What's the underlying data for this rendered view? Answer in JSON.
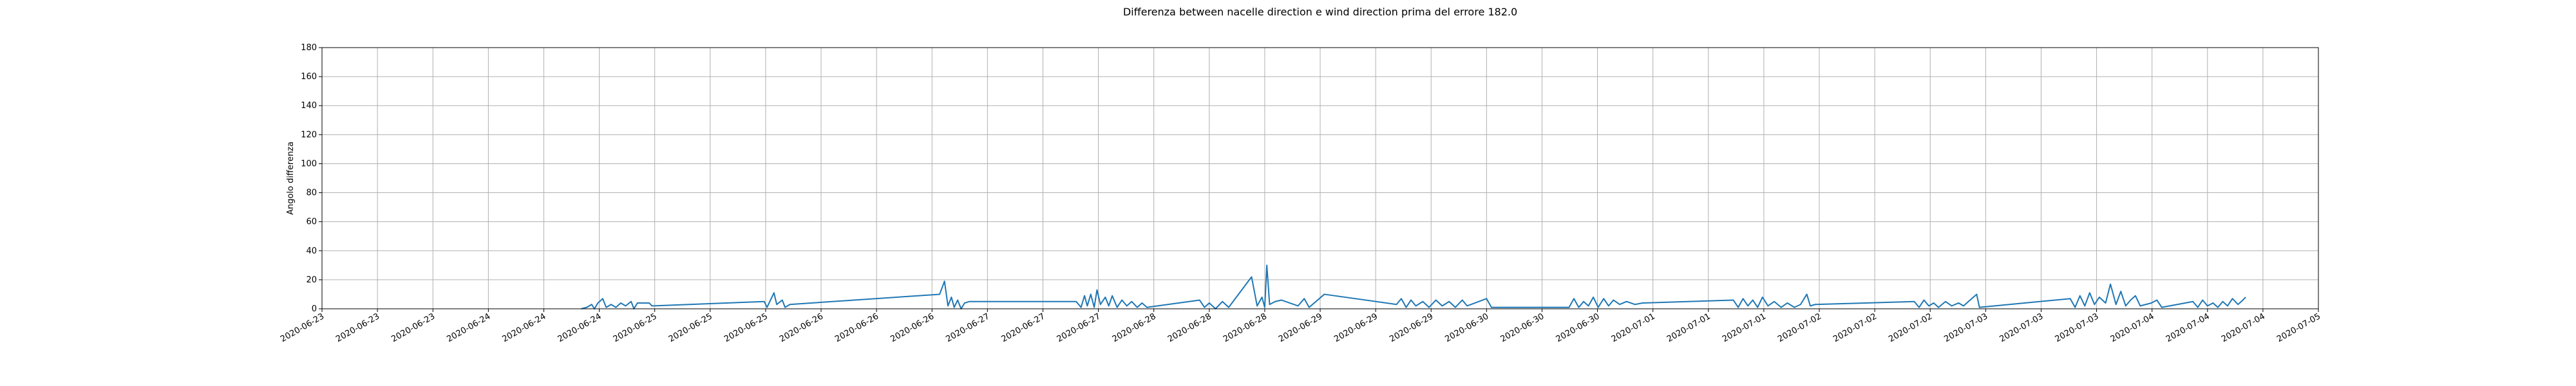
{
  "chart_data": {
    "type": "line",
    "title": "Differenza between nacelle direction e wind direction prima del errore 182.0",
    "ylabel": "Angolo differenza",
    "color": "#1f77b4",
    "grid": true,
    "xlim": [
      0,
      288
    ],
    "ylim": [
      0,
      180
    ],
    "yticks": [
      0,
      20,
      40,
      60,
      80,
      100,
      120,
      140,
      160,
      180
    ],
    "xticks": [
      {
        "value": 0,
        "label": "2020-06-23"
      },
      {
        "value": 8,
        "label": "2020-06-23"
      },
      {
        "value": 16,
        "label": "2020-06-23"
      },
      {
        "value": 24,
        "label": "2020-06-24"
      },
      {
        "value": 32,
        "label": "2020-06-24"
      },
      {
        "value": 40,
        "label": "2020-06-24"
      },
      {
        "value": 48,
        "label": "2020-06-25"
      },
      {
        "value": 56,
        "label": "2020-06-25"
      },
      {
        "value": 64,
        "label": "2020-06-25"
      },
      {
        "value": 72,
        "label": "2020-06-26"
      },
      {
        "value": 80,
        "label": "2020-06-26"
      },
      {
        "value": 88,
        "label": "2020-06-26"
      },
      {
        "value": 96,
        "label": "2020-06-27"
      },
      {
        "value": 104,
        "label": "2020-06-27"
      },
      {
        "value": 112,
        "label": "2020-06-27"
      },
      {
        "value": 120,
        "label": "2020-06-28"
      },
      {
        "value": 128,
        "label": "2020-06-28"
      },
      {
        "value": 136,
        "label": "2020-06-28"
      },
      {
        "value": 144,
        "label": "2020-06-29"
      },
      {
        "value": 152,
        "label": "2020-06-29"
      },
      {
        "value": 160,
        "label": "2020-06-29"
      },
      {
        "value": 168,
        "label": "2020-06-30"
      },
      {
        "value": 176,
        "label": "2020-06-30"
      },
      {
        "value": 184,
        "label": "2020-06-30"
      },
      {
        "value": 192,
        "label": "2020-07-01"
      },
      {
        "value": 200,
        "label": "2020-07-01"
      },
      {
        "value": 208,
        "label": "2020-07-01"
      },
      {
        "value": 216,
        "label": "2020-07-02"
      },
      {
        "value": 224,
        "label": "2020-07-02"
      },
      {
        "value": 232,
        "label": "2020-07-02"
      },
      {
        "value": 240,
        "label": "2020-07-03"
      },
      {
        "value": 248,
        "label": "2020-07-03"
      },
      {
        "value": 256,
        "label": "2020-07-03"
      },
      {
        "value": 264,
        "label": "2020-07-04"
      },
      {
        "value": 272,
        "label": "2020-07-04"
      },
      {
        "value": 280,
        "label": "2020-07-04"
      },
      {
        "value": 288,
        "label": "2020-07-05"
      }
    ],
    "x": [
      37.4,
      38.2,
      38.9,
      39.3,
      39.8,
      40.5,
      41.0,
      41.7,
      42.4,
      43.1,
      43.8,
      44.6,
      45.0,
      45.5,
      47.2,
      47.6,
      63.8,
      64.2,
      64.7,
      65.2,
      65.6,
      66.4,
      66.8,
      67.5,
      89.1,
      89.8,
      90.3,
      90.8,
      91.2,
      91.7,
      92.2,
      92.7,
      93.4,
      108.8,
      109.5,
      110.0,
      110.4,
      110.9,
      111.4,
      111.8,
      112.3,
      113.0,
      113.5,
      114.0,
      114.7,
      115.4,
      116.1,
      116.8,
      117.6,
      118.3,
      119.0,
      126.6,
      127.3,
      128.0,
      128.9,
      129.9,
      130.8,
      134.1,
      134.9,
      135.6,
      136.0,
      136.3,
      136.7,
      137.5,
      138.4,
      140.8,
      141.7,
      142.4,
      144.6,
      155.0,
      155.7,
      156.4,
      157.1,
      157.8,
      158.8,
      159.7,
      160.7,
      161.6,
      162.6,
      163.5,
      164.5,
      165.2,
      168.0,
      168.7,
      179.9,
      180.6,
      181.3,
      182.0,
      182.7,
      183.4,
      184.1,
      184.9,
      185.6,
      186.3,
      187.2,
      188.2,
      189.4,
      190.5,
      203.6,
      204.3,
      205.0,
      205.7,
      206.4,
      207.1,
      207.8,
      208.6,
      209.5,
      210.5,
      211.4,
      212.4,
      213.3,
      214.2,
      214.7,
      215.4,
      229.7,
      230.4,
      231.1,
      231.8,
      232.5,
      233.2,
      234.2,
      235.1,
      236.1,
      236.8,
      238.7,
      239.1,
      252.2,
      252.9,
      253.6,
      254.3,
      255.0,
      255.7,
      256.4,
      257.3,
      258.0,
      258.8,
      259.5,
      260.2,
      260.9,
      261.6,
      262.3,
      263.9,
      264.7,
      265.4,
      269.9,
      270.6,
      271.3,
      272.0,
      272.8,
      273.5,
      274.2,
      274.9,
      275.6,
      276.4,
      277.1,
      277.5
    ],
    "values": [
      0,
      1,
      3,
      0,
      4,
      7,
      1,
      3,
      1,
      4,
      2,
      5,
      0,
      4,
      4,
      2,
      5,
      1,
      6,
      11,
      3,
      6,
      1,
      3,
      10,
      19,
      2,
      8,
      1,
      6,
      0,
      4,
      5,
      5,
      1,
      9,
      2,
      10,
      1,
      13,
      3,
      8,
      2,
      9,
      1,
      6,
      2,
      5,
      1,
      4,
      1,
      6,
      1,
      4,
      0,
      5,
      1,
      22,
      2,
      8,
      1,
      30,
      3,
      5,
      6,
      2,
      7,
      1,
      10,
      3,
      7,
      1,
      6,
      2,
      5,
      1,
      6,
      2,
      5,
      1,
      6,
      2,
      7,
      1,
      1,
      7,
      1,
      5,
      2,
      8,
      1,
      7,
      2,
      6,
      3,
      5,
      3,
      4,
      6,
      1,
      7,
      2,
      6,
      1,
      8,
      2,
      5,
      1,
      4,
      1,
      3,
      10,
      2,
      3,
      5,
      1,
      6,
      2,
      4,
      1,
      5,
      2,
      4,
      2,
      10,
      1,
      7,
      1,
      9,
      2,
      11,
      3,
      8,
      4,
      17,
      3,
      12,
      2,
      6,
      9,
      2,
      4,
      6,
      1,
      5,
      1,
      6,
      2,
      4,
      1,
      5,
      2,
      7,
      3,
      6,
      8
    ]
  }
}
